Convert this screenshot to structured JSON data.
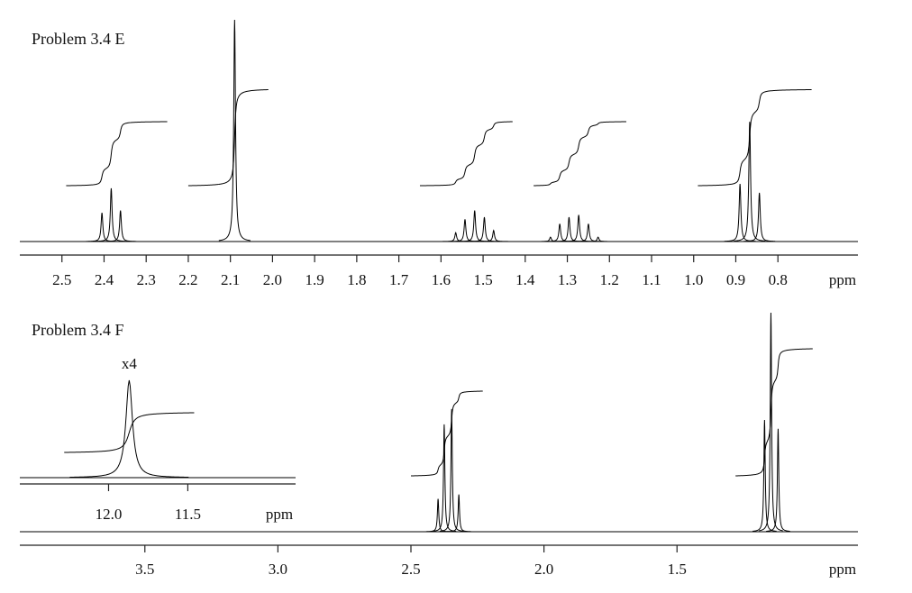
{
  "chart_data": [
    {
      "type": "spectrum",
      "title": "Problem 3.4 E",
      "x_label": "ppm",
      "color": "#000000",
      "xlim": [
        2.6,
        0.61
      ],
      "xticks": [
        2.5,
        2.4,
        2.3,
        2.2,
        2.1,
        {
          "value": 2,
          "label": "2.0"
        },
        1.9,
        1.8,
        1.7,
        1.6,
        1.5,
        1.4,
        1.3,
        1.2,
        1.1,
        {
          "value": 1,
          "label": "1.0"
        },
        0.9,
        0.8
      ],
      "x": [
        2.405,
        2.383,
        2.361,
        2.09,
        1.565,
        1.543,
        1.52,
        1.497,
        1.475,
        1.34,
        1.318,
        1.296,
        1.273,
        1.25,
        1.227,
        0.89,
        0.867,
        0.844
      ],
      "values": [
        13,
        24,
        14,
        100,
        4,
        10,
        14,
        11,
        5,
        2,
        8,
        11,
        12,
        8,
        2,
        26,
        54,
        22
      ],
      "integrals": [
        {
          "from": 2.49,
          "to": 2.25,
          "value": 2
        },
        {
          "from": 2.2,
          "to": 2.01,
          "value": 3
        },
        {
          "from": 1.65,
          "to": 1.43,
          "value": 2
        },
        {
          "from": 1.38,
          "to": 1.16,
          "value": 2
        },
        {
          "from": 0.99,
          "to": 0.72,
          "value": 3
        }
      ]
    },
    {
      "type": "spectrum",
      "title": "Problem 3.4 F",
      "x_label": "ppm",
      "color": "#000000",
      "xlim": [
        3.97,
        0.82
      ],
      "xticks": [
        3.5,
        {
          "value": 3,
          "label": "3.0"
        },
        2.5,
        {
          "value": 2,
          "label": "2.0"
        },
        1.5
      ],
      "x": [
        2.398,
        2.375,
        2.347,
        2.32,
        1.171,
        1.147,
        1.12
      ],
      "values": [
        15,
        49,
        56,
        17,
        51,
        100,
        47
      ],
      "integrals": [
        {
          "from": 2.5,
          "to": 2.23,
          "value": 2
        },
        {
          "from": 1.28,
          "to": 0.99,
          "value": 3
        }
      ]
    },
    {
      "type": "spectrum",
      "annotation": "x4",
      "x_label": "ppm",
      "color": "#000000",
      "xlim": [
        12.56,
        10.82
      ],
      "xticks": [
        {
          "value": 12,
          "label": "12.0"
        },
        11.5
      ],
      "x": [
        11.87
      ],
      "values": [
        100
      ],
      "integrals": [
        {
          "from": 12.28,
          "to": 11.46,
          "value": 1
        }
      ]
    }
  ]
}
